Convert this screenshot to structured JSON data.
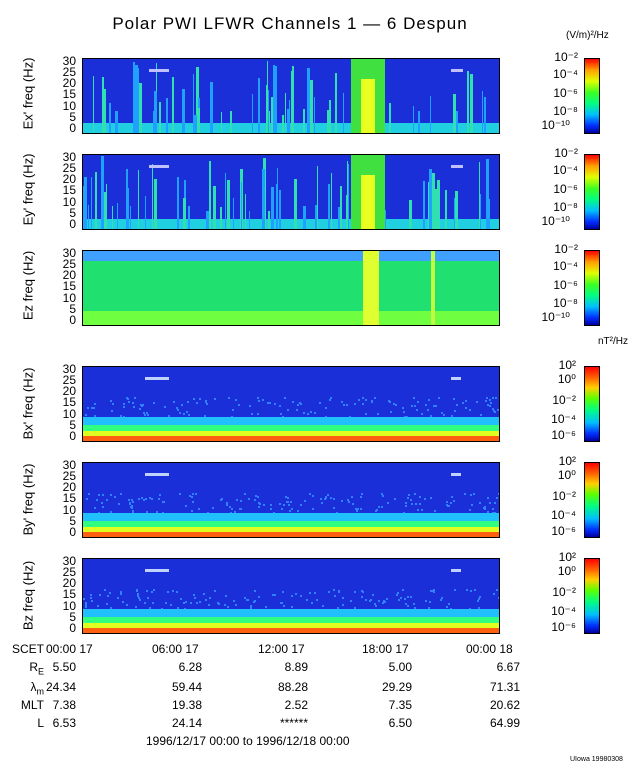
{
  "title": "Polar PWI LFWR Channels 1 — 6 Despun",
  "units": {
    "electric": "(V/m)²/Hz",
    "magnetic": "nT²/Hz"
  },
  "panels": [
    {
      "ylabel": "Ex' freq (Hz)",
      "kind": "electric"
    },
    {
      "ylabel": "Ey' freq (Hz)",
      "kind": "electric"
    },
    {
      "ylabel": "Ez freq (Hz)",
      "kind": "electric"
    },
    {
      "ylabel": "Bx' freq (Hz)",
      "kind": "magnetic"
    },
    {
      "ylabel": "By' freq (Hz)",
      "kind": "magnetic"
    },
    {
      "ylabel": "Bz freq (Hz)",
      "kind": "magnetic"
    }
  ],
  "freq_ticks": [
    "30",
    "25",
    "20",
    "15",
    "10",
    "5",
    "0"
  ],
  "colorbar_electric": [
    "10⁻²",
    "10⁻⁴",
    "10⁻⁶",
    "10⁻⁸",
    "10⁻¹⁰"
  ],
  "colorbar_magnetic": [
    "10²",
    "10⁰",
    "10⁻²",
    "10⁻⁴",
    "10⁻⁶"
  ],
  "time_axis": {
    "row_label": "SCET",
    "ticks": [
      "00:00 17",
      "06:00 17",
      "12:00 17",
      "18:00 17",
      "00:00 18"
    ]
  },
  "ephemeris": [
    {
      "label": "RE",
      "values": [
        "5.50",
        "6.28",
        "8.89",
        "5.00",
        "6.67"
      ]
    },
    {
      "label": "λm",
      "values": [
        "24.34",
        "59.44",
        "88.28",
        "29.29",
        "71.31"
      ]
    },
    {
      "label": "MLT",
      "values": [
        "7.38",
        "19.38",
        "2.52",
        "7.35",
        "20.62"
      ]
    },
    {
      "label": "L",
      "values": [
        "6.53",
        "24.14",
        "******",
        "6.50",
        "64.99"
      ]
    }
  ],
  "date_range": "1996/12/17 00:00 to 1996/12/18 00:00",
  "credit": "UIowa 19980308",
  "chart_data": {
    "type": "heatmap",
    "title": "Polar PWI LFWR Channels 1 — 6 Despun",
    "x": [
      "00:00 17",
      "06:00 17",
      "12:00 17",
      "18:00 17",
      "00:00 18"
    ],
    "ylim": [
      0,
      32
    ],
    "series": [
      {
        "name": "Ex' freq (Hz)"
      },
      {
        "name": "Ey' freq (Hz)"
      },
      {
        "name": "Ez freq (Hz)"
      },
      {
        "name": "Bx' freq (Hz)"
      },
      {
        "name": "By' freq (Hz)"
      },
      {
        "name": "Bz freq (Hz)"
      }
    ],
    "colorbar_electric_range": [
      "10⁻¹⁰",
      "10⁻²"
    ],
    "colorbar_magnetic_range": [
      "10⁻⁶",
      "10²"
    ]
  }
}
